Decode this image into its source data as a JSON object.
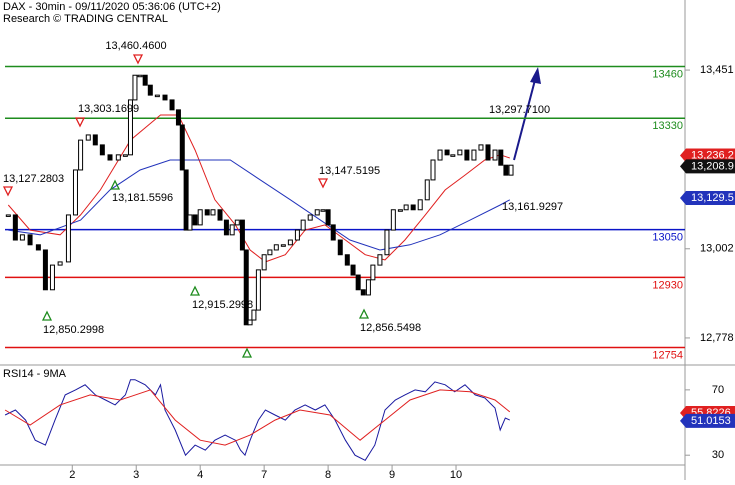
{
  "chart_data": {
    "type": "candlestick",
    "title": "DAX - 30min - 09/11/2020 05:36:06 (UTC+2)",
    "subtitle": "Research © TRADING CENTRAL",
    "xlim": [
      -0.13,
      10.58
    ],
    "xticks": [
      {
        "value": 1,
        "label": "2"
      },
      {
        "value": 2,
        "label": "3"
      },
      {
        "value": 3,
        "label": "4"
      },
      {
        "value": 4,
        "label": "7"
      },
      {
        "value": 5,
        "label": "8"
      },
      {
        "value": 6,
        "label": "9"
      },
      {
        "value": 7,
        "label": "10"
      }
    ],
    "ylim": [
      12710,
      13627
    ],
    "yticks": [
      {
        "value": 12778,
        "label": "12,778"
      },
      {
        "value": 13002,
        "label": "13,002"
      },
      {
        "value": 13451,
        "label": "13,451"
      }
    ],
    "x": [
      0,
      0.11,
      0.22,
      0.34,
      0.47,
      0.58,
      0.69,
      0.81,
      0.94,
      1.05,
      1.13,
      1.25,
      1.36,
      1.47,
      1.59,
      1.72,
      1.83,
      1.91,
      1.98,
      2.06,
      2.14,
      2.22,
      2.33,
      2.45,
      2.56,
      2.66,
      2.72,
      2.78,
      2.84,
      2.92,
      3.0,
      3.11,
      3.2,
      3.31,
      3.41,
      3.5,
      3.58,
      3.66,
      3.72,
      3.78,
      3.84,
      3.91,
      4.0,
      4.09,
      4.19,
      4.3,
      4.41,
      4.52,
      4.61,
      4.72,
      4.83,
      4.92,
      5.0,
      5.08,
      5.19,
      5.3,
      5.39,
      5.47,
      5.55,
      5.63,
      5.7,
      5.81,
      5.92,
      6.02,
      6.13,
      6.22,
      6.33,
      6.44,
      6.55,
      6.64,
      6.75,
      6.86,
      6.95,
      7.06,
      7.17,
      7.28,
      7.39,
      7.5,
      7.61,
      7.7,
      7.78,
      7.86
    ],
    "close": [
      13087,
      13024,
      13037,
      13012,
      12999,
      12899,
      12961,
      12969,
      13087,
      13200,
      13275,
      13288,
      13263,
      13238,
      13225,
      13238,
      13238,
      13376,
      13438,
      13438,
      13413,
      13388,
      13388,
      13376,
      13351,
      13313,
      13200,
      13049,
      13087,
      13062,
      13100,
      13087,
      13100,
      13074,
      13037,
      13062,
      13074,
      12999,
      12811,
      12823,
      12848,
      12949,
      12987,
      12999,
      13012,
      13012,
      13024,
      13049,
      13074,
      13087,
      13100,
      13100,
      13062,
      13024,
      12987,
      12961,
      12936,
      12899,
      12886,
      12924,
      12961,
      12987,
      13049,
      13100,
      13100,
      13112,
      13100,
      13125,
      13175,
      13225,
      13250,
      13238,
      13238,
      13250,
      13225,
      13250,
      13263,
      13225,
      13250,
      13212,
      13187,
      13212
    ],
    "candle_color": "#000000",
    "moving_averages": [
      {
        "color": "#e02020",
        "x": [
          0,
          0.34,
          0.81,
          1.13,
          1.44,
          1.91,
          2.38,
          2.66,
          2.92,
          3.23,
          3.55,
          3.78,
          4.02,
          4.33,
          4.64,
          4.95,
          5.27,
          5.58,
          5.89,
          6.2,
          6.52,
          6.83,
          7.14,
          7.45,
          7.69,
          7.84
        ],
        "values": [
          13112,
          13049,
          13037,
          13087,
          13150,
          13275,
          13338,
          13338,
          13250,
          13125,
          13062,
          12999,
          12969,
          12987,
          13049,
          13062,
          13024,
          12987,
          12974,
          13024,
          13087,
          13150,
          13187,
          13225,
          13238,
          13230
        ]
      },
      {
        "color": "#2233bb",
        "x": [
          0,
          0.5,
          1.13,
          1.59,
          2.06,
          2.53,
          3.0,
          3.47,
          3.94,
          4.41,
          4.88,
          5.34,
          5.81,
          6.28,
          6.75,
          7.22,
          7.69,
          7.84
        ],
        "values": [
          13049,
          13037,
          13074,
          13150,
          13200,
          13225,
          13225,
          13225,
          13175,
          13125,
          13074,
          13024,
          12999,
          13012,
          13037,
          13074,
          13112,
          13125
        ]
      }
    ],
    "levels": [
      {
        "value": 13460,
        "color": "#1e8c1e"
      },
      {
        "value": 13330,
        "color": "#1e8c1e"
      },
      {
        "value": 13050,
        "color": "#0a14c8"
      },
      {
        "value": 12930,
        "color": "#e01010"
      },
      {
        "value": 12754,
        "color": "#e01010"
      }
    ],
    "annotations": [
      "13,460.4600",
      "13,303.1699",
      "13,127.2803",
      "13,181.5596",
      "12,850.2998",
      "12,915.2998",
      "13,147.5195",
      "12,856.5498",
      "13,297.7100",
      "13,161.9297"
    ],
    "price_badges": [
      {
        "value": 13236.2,
        "label": "13,236.2",
        "color": "#e02020"
      },
      {
        "value": 13208.9,
        "label": "13,208.9",
        "color": "#111111"
      },
      {
        "value": 13129.5,
        "label": "13,129.5",
        "color": "#2233bb"
      }
    ],
    "rsi": {
      "title": "RSI14 - 9MA",
      "ylim": [
        24,
        84
      ],
      "yticks": [
        30,
        70
      ],
      "series": [
        {
          "color": "#1a1aa0",
          "x": [
            -0.05,
            0.11,
            0.27,
            0.42,
            0.58,
            0.73,
            0.89,
            1.05,
            1.2,
            1.36,
            1.52,
            1.67,
            1.83,
            1.91,
            1.98,
            2.14,
            2.3,
            2.38,
            2.45,
            2.61,
            2.77,
            2.92,
            3.08,
            3.23,
            3.39,
            3.55,
            3.63,
            3.7,
            3.78,
            3.91,
            4.02,
            4.17,
            4.33,
            4.48,
            4.64,
            4.8,
            4.95,
            5.11,
            5.27,
            5.42,
            5.58,
            5.73,
            5.89,
            6.05,
            6.2,
            6.36,
            6.52,
            6.67,
            6.83,
            6.98,
            7.14,
            7.3,
            7.45,
            7.61,
            7.69,
            7.77,
            7.84
          ],
          "values": [
            54.6,
            57.7,
            51.5,
            39.2,
            36.2,
            51.5,
            66.9,
            70,
            73.1,
            66.9,
            63.8,
            60.8,
            66.9,
            76.2,
            76.2,
            73.1,
            66.9,
            73.1,
            57.7,
            45.4,
            30,
            36.2,
            33.1,
            39.2,
            42.3,
            39.2,
            33.1,
            30,
            39.2,
            51.5,
            57.7,
            54.6,
            51.5,
            57.7,
            60.8,
            57.7,
            60.8,
            51.5,
            39.2,
            30,
            26.9,
            36.2,
            57.7,
            63.8,
            66.9,
            70,
            68.8,
            74.9,
            73.1,
            68.8,
            73.1,
            66.9,
            65.1,
            58.9,
            45.4,
            52.8,
            51.5
          ]
        },
        {
          "color": "#e02020",
          "x": [
            -0.05,
            0.34,
            0.81,
            1.28,
            1.75,
            2.22,
            2.61,
            3,
            3.39,
            3.78,
            4.17,
            4.56,
            5.03,
            5.5,
            5.89,
            6.28,
            6.75,
            7.22,
            7.61,
            7.84
          ],
          "values": [
            57.7,
            48.5,
            60.8,
            66.9,
            63.8,
            70,
            51.5,
            39.2,
            36.2,
            42.3,
            51.5,
            57.7,
            54.6,
            39.2,
            51.5,
            63.8,
            70,
            68.8,
            63.8,
            56.5
          ]
        }
      ],
      "badges": [
        {
          "value": 55.8226,
          "color": "#e02020"
        },
        {
          "value": 51.0153,
          "color": "#2233bb"
        }
      ]
    }
  }
}
